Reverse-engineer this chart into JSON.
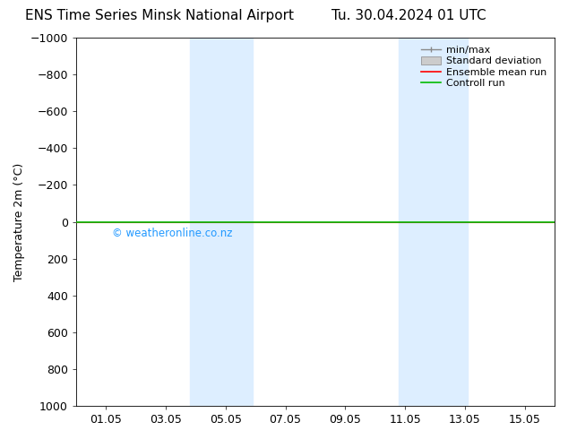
{
  "title_left": "ENS Time Series Minsk National Airport",
  "title_right": "Tu. 30.04.2024 01 UTC",
  "ylabel": "Temperature 2m (°C)",
  "ylim_bottom": 1000,
  "ylim_top": -1000,
  "yticks": [
    -1000,
    -800,
    -600,
    -400,
    -200,
    0,
    200,
    400,
    600,
    800,
    1000
  ],
  "xtick_labels": [
    "01.05",
    "03.05",
    "05.05",
    "07.05",
    "09.05",
    "11.05",
    "13.05",
    "15.05"
  ],
  "xtick_positions": [
    1,
    3,
    5,
    7,
    9,
    11,
    13,
    15
  ],
  "xlim": [
    0.0,
    16.0
  ],
  "shade_bands": [
    {
      "x_start": 3.8,
      "x_end": 4.5
    },
    {
      "x_start": 4.5,
      "x_end": 5.9
    },
    {
      "x_start": 10.8,
      "x_end": 11.8
    },
    {
      "x_start": 11.8,
      "x_end": 13.1
    }
  ],
  "shade_color": "#ddeeff",
  "green_line_y": 0,
  "red_line_y": 0,
  "watermark": "© weatheronline.co.nz",
  "watermark_color": "#2299ff",
  "background_color": "#ffffff",
  "legend_items": [
    "min/max",
    "Standard deviation",
    "Ensemble mean run",
    "Controll run"
  ],
  "title_fontsize": 11,
  "axis_label_fontsize": 9,
  "tick_fontsize": 9,
  "legend_fontsize": 8
}
